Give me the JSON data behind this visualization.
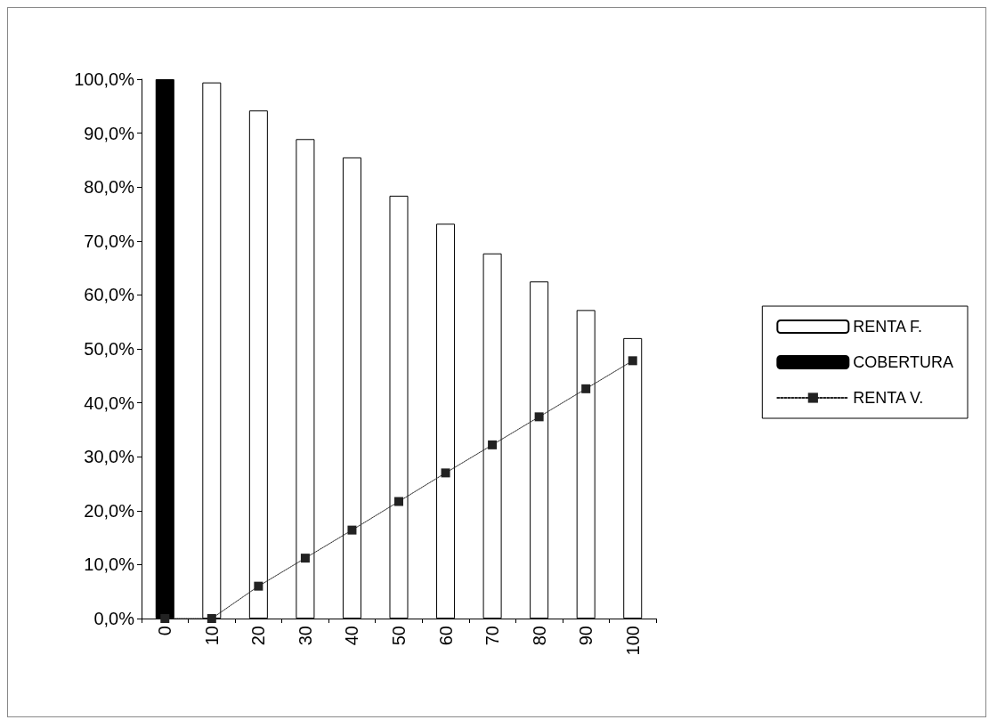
{
  "chart_data": {
    "type": "bar",
    "categories": [
      "0",
      "10",
      "20",
      "30",
      "40",
      "50",
      "60",
      "70",
      "80",
      "90",
      "100"
    ],
    "series": [
      {
        "name": "RENTA F.",
        "color": "#ffffff",
        "values": [
          null,
          99.4,
          94.2,
          88.9,
          85.5,
          78.4,
          73.2,
          67.7,
          62.5,
          57.2,
          52
        ]
      },
      {
        "name": "COBERTURA",
        "color": "#000000",
        "values": [
          100,
          null,
          null,
          null,
          null,
          null,
          null,
          null,
          null,
          null,
          null
        ]
      },
      {
        "name": "RENTA V.",
        "type": "line",
        "color": "#222222",
        "marker": "square",
        "line_style": "dotted",
        "values": [
          0,
          0,
          6,
          11.2,
          16.4,
          21.7,
          27,
          32.2,
          37.4,
          42.6,
          47.8
        ]
      }
    ],
    "ylim": [
      0,
      100
    ],
    "yticks": [
      {
        "value": 0,
        "label": "0,0%"
      },
      {
        "value": 10,
        "label": "10,0%"
      },
      {
        "value": 20,
        "label": "20,0%"
      },
      {
        "value": 30,
        "label": "30,0%"
      },
      {
        "value": 40,
        "label": "40,0%"
      },
      {
        "value": 50,
        "label": "50,0%"
      },
      {
        "value": 60,
        "label": "60,0%"
      },
      {
        "value": 70,
        "label": "70,0%"
      },
      {
        "value": 80,
        "label": "80,0%"
      },
      {
        "value": 90,
        "label": "90,0%"
      },
      {
        "value": 100,
        "label": "100,0%"
      }
    ],
    "grid": false,
    "legend": "right"
  }
}
